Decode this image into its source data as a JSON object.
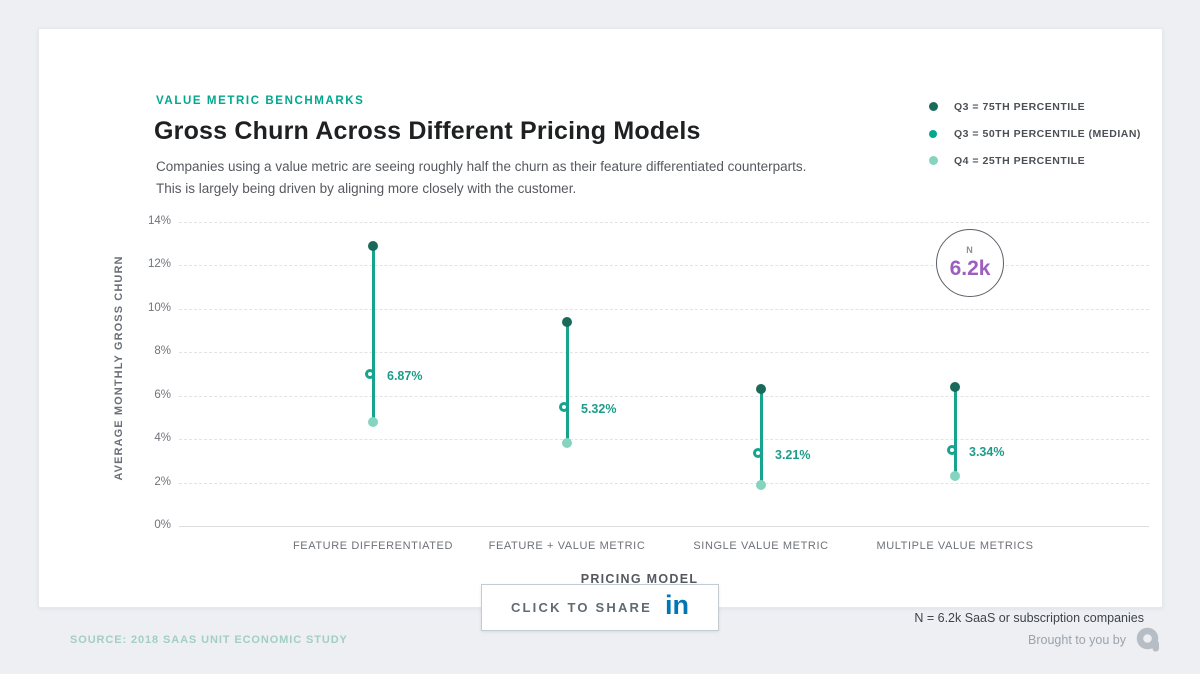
{
  "header": {
    "eyebrow": "VALUE METRIC BENCHMARKS",
    "title": "Gross Churn Across Different Pricing Models",
    "subtitle": "Companies using a value metric are seeing roughly half the churn as their feature differentiated counterparts. This is largely being driven by aligning more closely with the customer."
  },
  "legend": {
    "items": [
      {
        "label": "Q3 = 75TH PERCENTILE",
        "marker": "filled-dark"
      },
      {
        "label": "Q3 = 50TH PERCENTILE (MEDIAN)",
        "marker": "ring"
      },
      {
        "label": "Q4 = 25TH PERCENTILE",
        "marker": "filled-light"
      }
    ]
  },
  "chart_data": {
    "type": "scatter",
    "subtype": "vertical-range-dot-plot",
    "title": "Gross Churn Across Different Pricing Models",
    "xlabel": "PRICING MODEL",
    "ylabel": "AVERAGE MONTHLY GROSS CHURN",
    "ylim": [
      0,
      14
    ],
    "yticks": [
      0,
      2,
      4,
      6,
      8,
      10,
      12,
      14
    ],
    "ytick_suffix": "%",
    "grid": "horizontal-dashed",
    "legend_position": "top-right",
    "categories": [
      "FEATURE DIFFERENTIATED",
      "FEATURE + VALUE METRIC",
      "SINGLE VALUE METRIC",
      "MULTIPLE VALUE METRICS"
    ],
    "series": [
      {
        "category": "FEATURE DIFFERENTIATED",
        "p75": 12.9,
        "median": 6.87,
        "p25": 4.8,
        "median_label": "6.87%"
      },
      {
        "category": "FEATURE + VALUE METRIC",
        "p75": 9.4,
        "median": 5.32,
        "p25": 3.8,
        "median_label": "5.32%"
      },
      {
        "category": "SINGLE VALUE METRIC",
        "p75": 6.3,
        "median": 3.21,
        "p25": 1.9,
        "median_label": "3.21%"
      },
      {
        "category": "MULTIPLE VALUE METRICS",
        "p75": 6.4,
        "median": 3.34,
        "p25": 2.3,
        "median_label": "3.34%"
      }
    ],
    "annotations": [
      {
        "name": "sample-size-badge",
        "label": "N",
        "value": "6.2k"
      }
    ]
  },
  "n_badge": {
    "label": "N",
    "value": "6.2k"
  },
  "share": {
    "label": "CLICK TO SHARE",
    "icon": "linkedin-in"
  },
  "n_note": "N = 6.2k SaaS or subscription companies",
  "footer": {
    "source": "SOURCE: 2018 SAAS UNIT ECONOMIC STUDY",
    "brought": "Brought to you by"
  },
  "colors": {
    "accent_teal": "#00A88E",
    "range_line": "#16A48E",
    "p75_dot": "#1A6A5B",
    "p25_dot": "#84D4BE",
    "median_label": "#1E9C89",
    "value_purple": "#9C5FC0",
    "linkedin_blue": "#0077B5",
    "source_teal": "#A3CEC5"
  }
}
